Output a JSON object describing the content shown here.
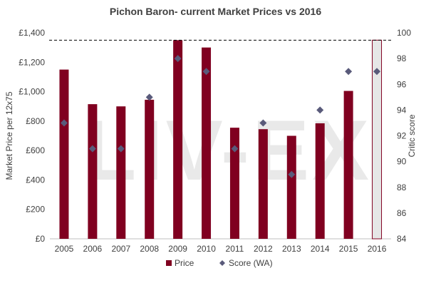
{
  "chart_data": {
    "type": "bar",
    "title": "Pichon Baron- current Market Prices vs 2016",
    "watermark": "LIV-EX",
    "categories": [
      "2005",
      "2006",
      "2007",
      "2008",
      "2009",
      "2010",
      "2011",
      "2012",
      "2013",
      "2014",
      "2015",
      "2016"
    ],
    "series": [
      {
        "name": "Price",
        "type": "bar",
        "axis": "left",
        "color": "#800020",
        "highlight_color": "#e6e6e6",
        "highlight_category": "2016",
        "values": [
          1150,
          915,
          900,
          945,
          1350,
          1300,
          755,
          745,
          700,
          785,
          1005,
          1350
        ]
      },
      {
        "name": "Score (WA)",
        "type": "scatter",
        "axis": "right",
        "color": "#595a7a",
        "marker": "diamond",
        "values": [
          93,
          91,
          91,
          95,
          98,
          97,
          91,
          93,
          89,
          94,
          97,
          97
        ]
      }
    ],
    "ylabel": "Market Price per 12x75",
    "y2label": "Critic score",
    "ylim": [
      0,
      1400
    ],
    "y2lim": [
      84,
      100
    ],
    "yticks": [
      "£0",
      "£200",
      "£400",
      "£600",
      "£800",
      "£1,000",
      "£1,200",
      "£1,400"
    ],
    "y2ticks": [
      "84",
      "86",
      "88",
      "90",
      "92",
      "94",
      "96",
      "98",
      "100"
    ],
    "reference_line": {
      "value": 1350,
      "axis": "left",
      "style": "dashed"
    },
    "legend": {
      "position": "bottom"
    },
    "grid": false
  }
}
